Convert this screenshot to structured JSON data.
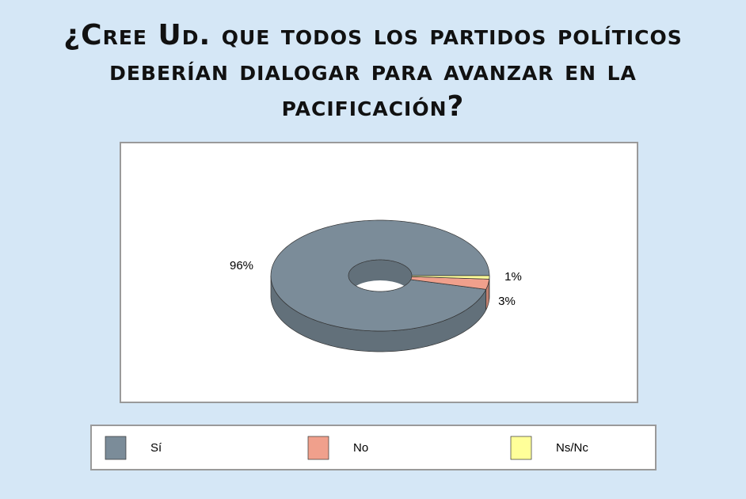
{
  "chart_data": {
    "type": "pie",
    "donut": true,
    "title": "¿Cree Ud. que todos los partidos políticos deberían dialogar para avanzar en la pacificación?",
    "categories": [
      "Sí",
      "No",
      "Ns/Nc"
    ],
    "values": [
      96,
      3,
      1
    ],
    "value_labels": [
      "96%",
      "3%",
      "1%"
    ],
    "colors": [
      "#7b8c99",
      "#f0a08c",
      "#ffff99"
    ],
    "legend": "bottom"
  }
}
